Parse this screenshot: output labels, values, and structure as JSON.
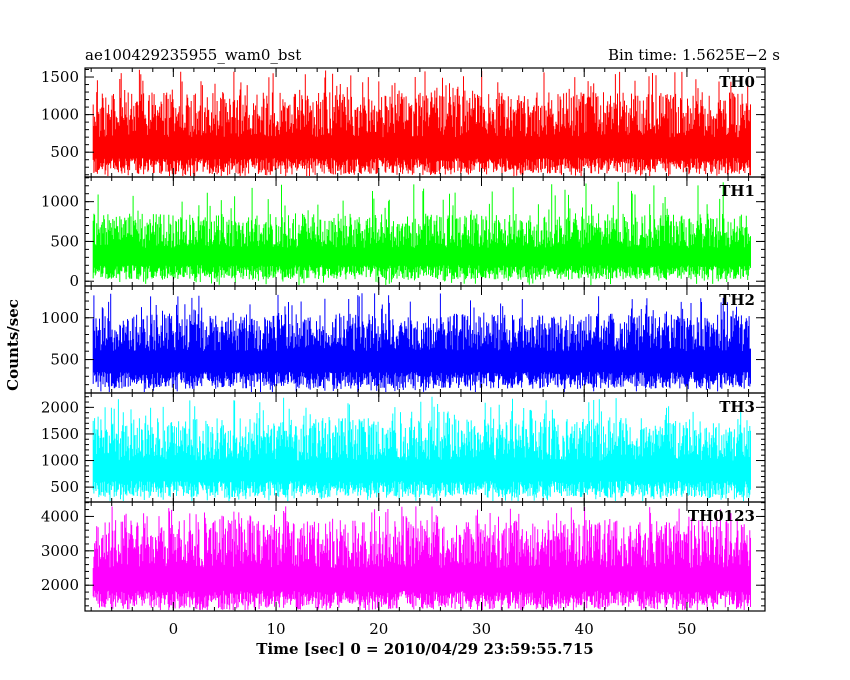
{
  "header": {
    "title": "ae100429235955_wam0_bst",
    "bin_time": "Bin time: 1.5625E−2 s"
  },
  "chart_data": [
    {
      "type": "line",
      "panel": "TH0",
      "color": "#ff0000",
      "ylim": [
        170,
        1620
      ],
      "yticks": [
        500,
        1000,
        1500
      ],
      "xlim": [
        -8.6,
        57.6
      ],
      "xticks": [
        0,
        10,
        20,
        30,
        40,
        50
      ],
      "series": [
        {
          "name": "TH0",
          "x_range": [
            -7.8,
            56.2
          ],
          "baseline_mean": 700,
          "spike_typical_max": 1300,
          "spike_peak": 1600,
          "floor_min": 200
        }
      ]
    },
    {
      "type": "line",
      "panel": "TH1",
      "color": "#00ff00",
      "ylim": [
        -60,
        1310
      ],
      "yticks": [
        0,
        500,
        1000
      ],
      "xlim": [
        -8.6,
        57.6
      ],
      "xticks": [
        0,
        10,
        20,
        30,
        40,
        50
      ],
      "series": [
        {
          "name": "TH1",
          "x_range": [
            -7.8,
            56.2
          ],
          "baseline_mean": 420,
          "spike_typical_max": 850,
          "spike_peak": 1250,
          "floor_min": 20
        }
      ]
    },
    {
      "type": "line",
      "panel": "TH2",
      "color": "#0000ff",
      "ylim": [
        100,
        1380
      ],
      "yticks": [
        500,
        1000
      ],
      "xlim": [
        -8.6,
        57.6
      ],
      "xticks": [
        0,
        10,
        20,
        30,
        40,
        50
      ],
      "series": [
        {
          "name": "TH2",
          "x_range": [
            -7.8,
            56.2
          ],
          "baseline_mean": 600,
          "spike_typical_max": 1050,
          "spike_peak": 1300,
          "floor_min": 150
        }
      ]
    },
    {
      "type": "line",
      "panel": "TH3",
      "color": "#00ffff",
      "ylim": [
        220,
        2270
      ],
      "yticks": [
        500,
        1000,
        1500,
        2000
      ],
      "xlim": [
        -8.6,
        57.6
      ],
      "xticks": [
        0,
        10,
        20,
        30,
        40,
        50
      ],
      "series": [
        {
          "name": "TH3",
          "x_range": [
            -7.8,
            56.2
          ],
          "baseline_mean": 1000,
          "spike_typical_max": 1800,
          "spike_peak": 2200,
          "floor_min": 300
        }
      ]
    },
    {
      "type": "line",
      "panel": "TH0123",
      "color": "#ff00ff",
      "ylim": [
        1250,
        4420
      ],
      "yticks": [
        2000,
        3000,
        4000
      ],
      "xlim": [
        -8.6,
        57.6
      ],
      "xticks": [
        0,
        10,
        20,
        30,
        40,
        50
      ],
      "series": [
        {
          "name": "TH0123",
          "x_range": [
            -7.8,
            56.2
          ],
          "baseline_mean": 2500,
          "spike_typical_max": 3900,
          "spike_peak": 4300,
          "floor_min": 1300
        }
      ]
    }
  ],
  "axes": {
    "ylabel": "Counts/sec",
    "xlabel": "Time [sec] 0 = 2010/04/29 23:59:55.715",
    "xtick_labels": [
      "0",
      "10",
      "20",
      "30",
      "40",
      "50"
    ]
  }
}
